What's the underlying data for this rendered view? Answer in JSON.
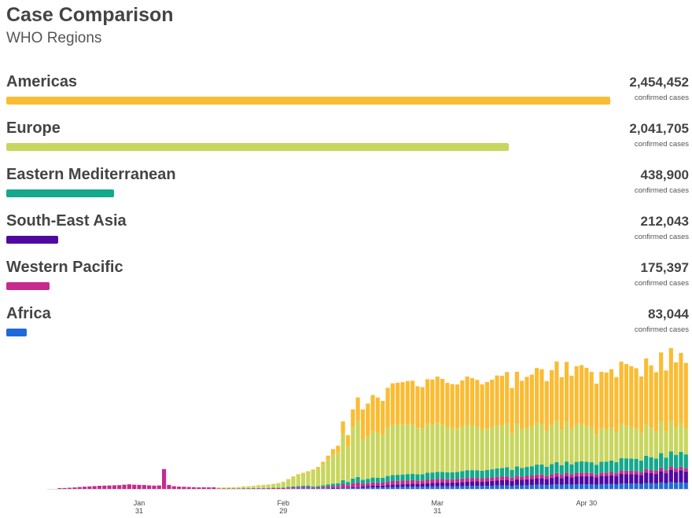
{
  "header": {
    "title": "Case Comparison",
    "subtitle": "WHO Regions"
  },
  "regions": [
    {
      "name": "Americas",
      "value_label": "2,454,452",
      "value": 2454452,
      "unit": "confirmed cases",
      "color": "#fbbc33"
    },
    {
      "name": "Europe",
      "value_label": "2,041,705",
      "value": 2041705,
      "unit": "confirmed cases",
      "color": "#c8d65f"
    },
    {
      "name": "Eastern Mediterranean",
      "value_label": "438,900",
      "value": 438900,
      "unit": "confirmed cases",
      "color": "#14a88c"
    },
    {
      "name": "South-East Asia",
      "value_label": "212,043",
      "value": 212043,
      "unit": "confirmed cases",
      "color": "#5009a0"
    },
    {
      "name": "Western Pacific",
      "value_label": "175,397",
      "value": 175397,
      "unit": "confirmed cases",
      "color": "#c62b8e"
    },
    {
      "name": "Africa",
      "value_label": "83,044",
      "value": 83044,
      "unit": "confirmed cases",
      "color": "#1f6ad8"
    }
  ],
  "chart_data": {
    "type": "bar",
    "stacked": true,
    "title": "",
    "xlabel": "",
    "ylabel": "",
    "x_start": "2020-01-11",
    "x_end": "2020-05-31",
    "x_ticks": [
      {
        "date": "2020-01-31",
        "label_top": "Jan",
        "label_bottom": "31"
      },
      {
        "date": "2020-02-29",
        "label_top": "Feb",
        "label_bottom": "29"
      },
      {
        "date": "2020-03-31",
        "label_top": "Mar",
        "label_bottom": "31"
      },
      {
        "date": "2020-04-30",
        "label_top": "Apr 30",
        "label_bottom": ""
      }
    ],
    "series_order": [
      "Africa",
      "South-East Asia",
      "Western Pacific",
      "Eastern Mediterranean",
      "Europe",
      "Americas"
    ],
    "series_colors": {
      "Africa": "#1f6ad8",
      "South-East Asia": "#5009a0",
      "Western Pacific": "#c62b8e",
      "Eastern Mediterranean": "#14a88c",
      "Europe": "#c8d65f",
      "Americas": "#fbbc33"
    },
    "ylim": [
      0,
      175000
    ],
    "daily_totals": [
      [
        0,
        0,
        0,
        0,
        1100,
        1200,
        1500,
        1900,
        2500,
        2900,
        3300,
        3700,
        4100,
        4300,
        4500,
        4700,
        4900,
        5500,
        6000,
        5500,
        5300,
        5100,
        4600,
        4300,
        4500,
        26000,
        5200,
        3500,
        3000,
        2800,
        2500,
        2200,
        2000,
        2100,
        2000,
        2100,
        2100,
        2200,
        2300,
        2500,
        2800,
        3500,
        3800,
        4200,
        5000,
        5500,
        6000,
        6900,
        7800,
        9700,
        13000,
        16500,
        19400,
        21100,
        23100,
        25400,
        28700,
        35600,
        43600,
        52100,
        56700,
        88300,
        70400,
        104200,
        119800,
        104100,
        111700,
        123000,
        119800,
        115300,
        132400,
        138300,
        139000,
        139900,
        141200,
        141700,
        134500,
        133300,
        143700,
        143400,
        147100,
        144100,
        138900,
        137200,
        136800,
        142100,
        147200,
        145200,
        142800,
        137000,
        140000,
        143100,
        148500,
        148200,
        153100,
        132100,
        153500,
        141600,
        146800,
        149700,
        158400,
        156800,
        141200,
        155600,
        166800,
        146200,
        166400,
        148100,
        160600,
        162100,
        158600,
        153300,
        137800,
        153400,
        152300,
        156800,
        146500,
        166700,
        163500,
        160800,
        158100,
        147300,
        170900,
        161700,
        152800,
        178800,
        155100,
        184500,
        165700,
        178200,
        165000
      ]
    ],
    "note_totals": "daily_totals[0] lists total new confirmed cases per day starting at x_start"
  }
}
